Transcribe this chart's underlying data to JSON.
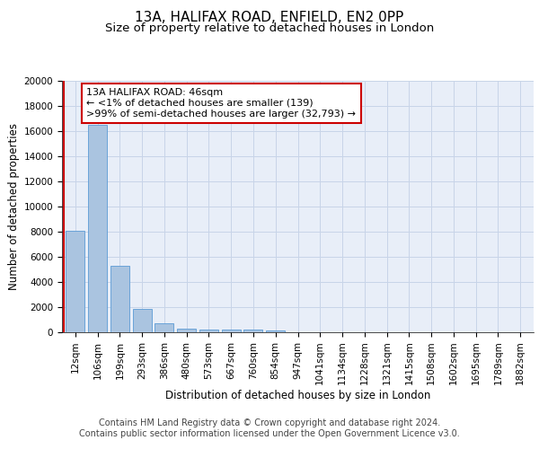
{
  "title1": "13A, HALIFAX ROAD, ENFIELD, EN2 0PP",
  "title2": "Size of property relative to detached houses in London",
  "xlabel": "Distribution of detached houses by size in London",
  "ylabel": "Number of detached properties",
  "bar_labels": [
    "12sqm",
    "106sqm",
    "199sqm",
    "293sqm",
    "386sqm",
    "480sqm",
    "573sqm",
    "667sqm",
    "760sqm",
    "854sqm",
    "947sqm",
    "1041sqm",
    "1134sqm",
    "1228sqm",
    "1321sqm",
    "1415sqm",
    "1508sqm",
    "1602sqm",
    "1695sqm",
    "1789sqm",
    "1882sqm"
  ],
  "bar_values": [
    8100,
    16500,
    5300,
    1850,
    700,
    300,
    220,
    200,
    190,
    170,
    0,
    0,
    0,
    0,
    0,
    0,
    0,
    0,
    0,
    0,
    0
  ],
  "bar_color": "#aac4e0",
  "bar_edge_color": "#5b9bd5",
  "background_color": "#e8eef8",
  "grid_color": "#c8d4e8",
  "vline_color": "#cc0000",
  "annotation_text": "13A HALIFAX ROAD: 46sqm\n← <1% of detached houses are smaller (139)\n>99% of semi-detached houses are larger (32,793) →",
  "annotation_box_color": "#ffffff",
  "annotation_box_edge_color": "#cc0000",
  "ylim": [
    0,
    20000
  ],
  "yticks": [
    0,
    2000,
    4000,
    6000,
    8000,
    10000,
    12000,
    14000,
    16000,
    18000,
    20000
  ],
  "footer_text": "Contains HM Land Registry data © Crown copyright and database right 2024.\nContains public sector information licensed under the Open Government Licence v3.0.",
  "title1_fontsize": 11,
  "title2_fontsize": 9.5,
  "ylabel_fontsize": 8.5,
  "xlabel_fontsize": 8.5,
  "tick_fontsize": 7.5,
  "annotation_fontsize": 8,
  "footer_fontsize": 7
}
